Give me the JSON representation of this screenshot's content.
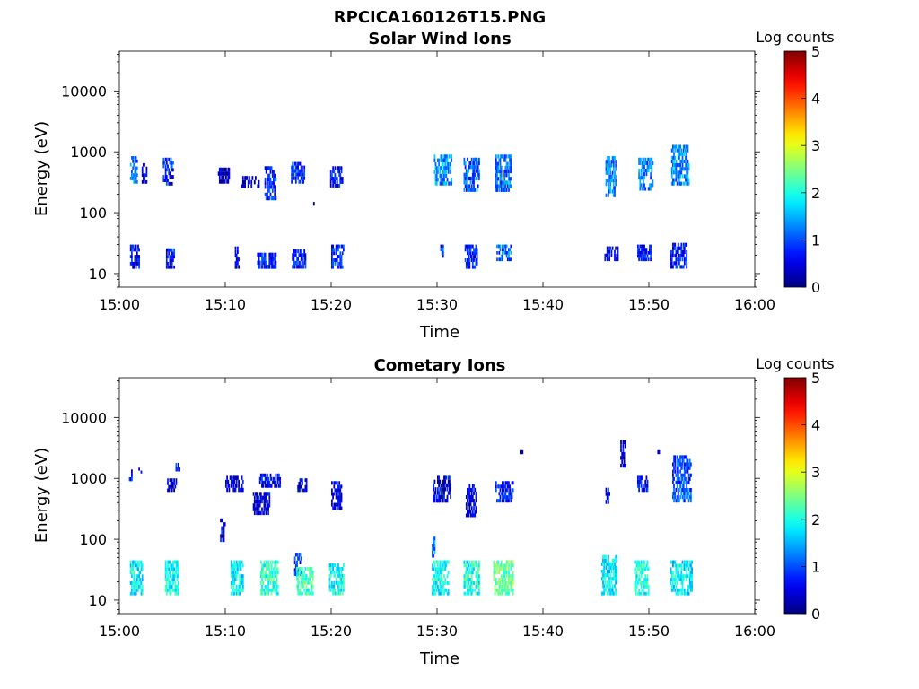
{
  "figure": {
    "title": "RPCICA160126T15.PNG"
  },
  "chart_data": [
    {
      "type": "heatmap",
      "title": "Solar Wind Ions",
      "xlabel": "Time",
      "ylabel": "Energy (eV)",
      "x_tick_labels": [
        "15:00",
        "15:10",
        "15:20",
        "15:30",
        "15:40",
        "15:50",
        "16:00"
      ],
      "xlim_minutes": [
        0,
        60
      ],
      "y_scale": "log",
      "ylim": [
        6,
        45000
      ],
      "y_tick_values": [
        10,
        100,
        1000,
        10000
      ],
      "y_tick_labels": [
        "10",
        "100",
        "1000",
        "10000"
      ],
      "colorbar": {
        "label": "Log counts",
        "range": [
          0,
          5
        ],
        "tick_labels": [
          "0",
          "1",
          "2",
          "3",
          "4",
          "5"
        ],
        "colormap": "jet"
      },
      "clusters": [
        {
          "t": [
            1.0,
            1.7
          ],
          "e": [
            300,
            850
          ],
          "v": 1.2
        },
        {
          "t": [
            1.0,
            1.9
          ],
          "e": [
            12,
            30
          ],
          "v": 0.6
        },
        {
          "t": [
            2.1,
            2.6
          ],
          "e": [
            300,
            650
          ],
          "v": 0.5
        },
        {
          "t": [
            4.1,
            5.1
          ],
          "e": [
            280,
            800
          ],
          "v": 0.8
        },
        {
          "t": [
            4.4,
            5.2
          ],
          "e": [
            12,
            26
          ],
          "v": 0.7
        },
        {
          "t": [
            9.3,
            10.4
          ],
          "e": [
            300,
            550
          ],
          "v": 0.3
        },
        {
          "t": [
            10.9,
            11.3
          ],
          "e": [
            12,
            28
          ],
          "v": 0.4
        },
        {
          "t": [
            11.5,
            13.2
          ],
          "e": [
            250,
            400
          ],
          "v": 0.3
        },
        {
          "t": [
            13.0,
            14.8
          ],
          "e": [
            12,
            22
          ],
          "v": 0.7
        },
        {
          "t": [
            13.7,
            14.8
          ],
          "e": [
            160,
            580
          ],
          "v": 0.9
        },
        {
          "t": [
            16.2,
            17.5
          ],
          "e": [
            300,
            680
          ],
          "v": 0.8
        },
        {
          "t": [
            16.3,
            17.6
          ],
          "e": [
            12,
            25
          ],
          "v": 0.7
        },
        {
          "t": [
            18.1,
            18.4
          ],
          "e": [
            130,
            150
          ],
          "v": 0.3
        },
        {
          "t": [
            19.9,
            21.1
          ],
          "e": [
            260,
            580
          ],
          "v": 0.7
        },
        {
          "t": [
            20.0,
            21.2
          ],
          "e": [
            12,
            30
          ],
          "v": 0.8
        },
        {
          "t": [
            29.7,
            31.4
          ],
          "e": [
            280,
            900
          ],
          "v": 1.3
        },
        {
          "t": [
            30.3,
            30.6
          ],
          "e": [
            16,
            30
          ],
          "v": 1.1
        },
        {
          "t": [
            32.5,
            34.0
          ],
          "e": [
            220,
            800
          ],
          "v": 1.1
        },
        {
          "t": [
            32.6,
            33.8
          ],
          "e": [
            12,
            30
          ],
          "v": 0.7
        },
        {
          "t": [
            35.5,
            37.0
          ],
          "e": [
            220,
            900
          ],
          "v": 1.1
        },
        {
          "t": [
            35.6,
            37.0
          ],
          "e": [
            16,
            30
          ],
          "v": 1.1
        },
        {
          "t": [
            45.9,
            46.9
          ],
          "e": [
            180,
            850
          ],
          "v": 1.2
        },
        {
          "t": [
            45.8,
            47.1
          ],
          "e": [
            16,
            28
          ],
          "v": 0.6
        },
        {
          "t": [
            49.0,
            50.4
          ],
          "e": [
            230,
            800
          ],
          "v": 1.2
        },
        {
          "t": [
            48.9,
            50.2
          ],
          "e": [
            16,
            30
          ],
          "v": 0.7
        },
        {
          "t": [
            52.1,
            53.8
          ],
          "e": [
            280,
            1300
          ],
          "v": 1.3
        },
        {
          "t": [
            52.0,
            53.6
          ],
          "e": [
            12,
            32
          ],
          "v": 0.7
        }
      ]
    },
    {
      "type": "heatmap",
      "title": "Cometary Ions",
      "xlabel": "Time",
      "ylabel": "Energy (eV)",
      "x_tick_labels": [
        "15:00",
        "15:10",
        "15:20",
        "15:30",
        "15:40",
        "15:50",
        "16:00"
      ],
      "xlim_minutes": [
        0,
        60
      ],
      "y_scale": "log",
      "ylim": [
        6,
        45000
      ],
      "y_tick_values": [
        10,
        100,
        1000,
        10000
      ],
      "y_tick_labels": [
        "10",
        "100",
        "1000",
        "10000"
      ],
      "colorbar": {
        "label": "Log counts",
        "range": [
          0,
          5
        ],
        "tick_labels": [
          "0",
          "1",
          "2",
          "3",
          "4",
          "5"
        ],
        "colormap": "jet"
      },
      "clusters": [
        {
          "t": [
            0.9,
            1.2
          ],
          "e": [
            900,
            1400
          ],
          "v": 0.6
        },
        {
          "t": [
            1.0,
            2.2
          ],
          "e": [
            12,
            45
          ],
          "v": 1.8
        },
        {
          "t": [
            1.8,
            2.1
          ],
          "e": [
            1200,
            1500
          ],
          "v": 0.7
        },
        {
          "t": [
            4.3,
            5.6
          ],
          "e": [
            12,
            45
          ],
          "v": 1.9
        },
        {
          "t": [
            4.5,
            5.4
          ],
          "e": [
            600,
            1000
          ],
          "v": 0.5
        },
        {
          "t": [
            5.3,
            5.7
          ],
          "e": [
            1300,
            1800
          ],
          "v": 0.7
        },
        {
          "t": [
            9.5,
            10.0
          ],
          "e": [
            90,
            220
          ],
          "v": 0.6
        },
        {
          "t": [
            10.0,
            11.7
          ],
          "e": [
            600,
            1100
          ],
          "v": 0.5
        },
        {
          "t": [
            10.5,
            11.7
          ],
          "e": [
            12,
            45
          ],
          "v": 1.8
        },
        {
          "t": [
            12.6,
            14.2
          ],
          "e": [
            250,
            600
          ],
          "v": 0.5
        },
        {
          "t": [
            13.2,
            15.2
          ],
          "e": [
            700,
            1200
          ],
          "v": 0.6
        },
        {
          "t": [
            13.3,
            15.0
          ],
          "e": [
            12,
            45
          ],
          "v": 2.1
        },
        {
          "t": [
            16.5,
            17.2
          ],
          "e": [
            25,
            60
          ],
          "v": 0.8
        },
        {
          "t": [
            16.7,
            18.3
          ],
          "e": [
            12,
            35
          ],
          "v": 2.2
        },
        {
          "t": [
            16.8,
            17.7
          ],
          "e": [
            600,
            1000
          ],
          "v": 0.5
        },
        {
          "t": [
            19.8,
            21.2
          ],
          "e": [
            12,
            40
          ],
          "v": 1.9
        },
        {
          "t": [
            20.0,
            21.0
          ],
          "e": [
            300,
            900
          ],
          "v": 0.5
        },
        {
          "t": [
            29.5,
            29.8
          ],
          "e": [
            50,
            110
          ],
          "v": 1.2
        },
        {
          "t": [
            29.5,
            31.1
          ],
          "e": [
            12,
            45
          ],
          "v": 1.9
        },
        {
          "t": [
            29.6,
            31.3
          ],
          "e": [
            400,
            1100
          ],
          "v": 0.5
        },
        {
          "t": [
            32.5,
            34.0
          ],
          "e": [
            12,
            45
          ],
          "v": 2.0
        },
        {
          "t": [
            32.7,
            33.7
          ],
          "e": [
            230,
            800
          ],
          "v": 0.5
        },
        {
          "t": [
            35.3,
            37.2
          ],
          "e": [
            12,
            45
          ],
          "v": 2.4
        },
        {
          "t": [
            35.5,
            37.2
          ],
          "e": [
            400,
            900
          ],
          "v": 0.8
        },
        {
          "t": [
            37.8,
            38.1
          ],
          "e": [
            2500,
            2900
          ],
          "v": 0.4
        },
        {
          "t": [
            45.5,
            47.0
          ],
          "e": [
            12,
            55
          ],
          "v": 1.8
        },
        {
          "t": [
            45.9,
            46.3
          ],
          "e": [
            380,
            700
          ],
          "v": 0.6
        },
        {
          "t": [
            47.3,
            47.8
          ],
          "e": [
            1500,
            4200
          ],
          "v": 0.5
        },
        {
          "t": [
            48.6,
            50.0
          ],
          "e": [
            12,
            45
          ],
          "v": 2.0
        },
        {
          "t": [
            48.9,
            49.9
          ],
          "e": [
            600,
            1100
          ],
          "v": 0.6
        },
        {
          "t": [
            50.7,
            51.0
          ],
          "e": [
            2500,
            2900
          ],
          "v": 0.4
        },
        {
          "t": [
            52.0,
            54.1
          ],
          "e": [
            12,
            45
          ],
          "v": 1.8
        },
        {
          "t": [
            52.2,
            54.0
          ],
          "e": [
            400,
            2400
          ],
          "v": 1.0
        }
      ]
    }
  ]
}
